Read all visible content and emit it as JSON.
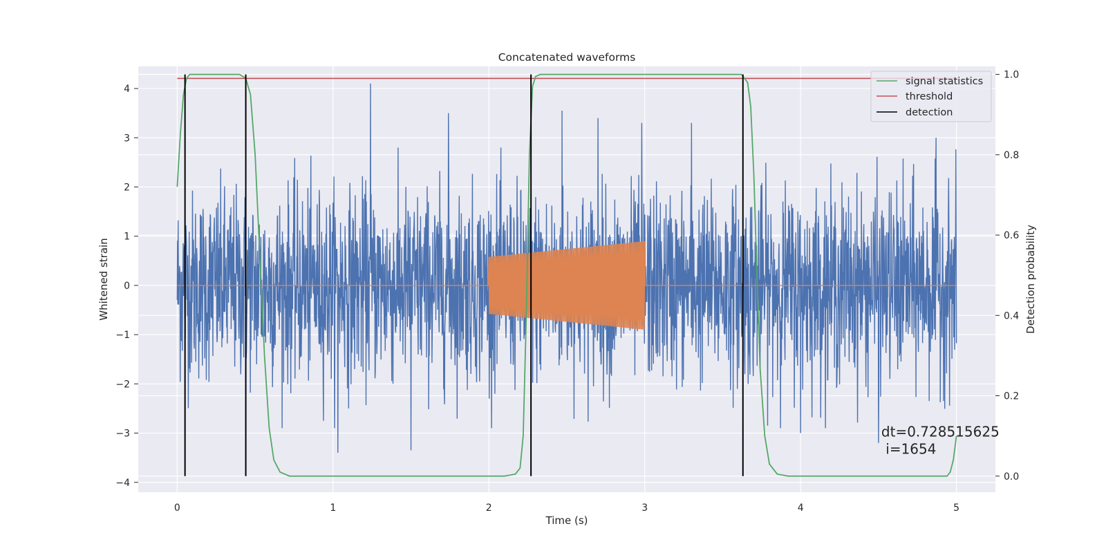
{
  "chart_data": {
    "type": "line",
    "title": "Concatenated waveforms",
    "xlabel": "Time (s)",
    "ylabel_left": "Whitened strain",
    "ylabel_right": "Detection probability",
    "xlim": [
      -0.25,
      5.25
    ],
    "ylim_left": [
      -4.2,
      4.45
    ],
    "ylim_right": [
      -0.04,
      1.02
    ],
    "xticks": [
      0,
      1,
      2,
      3,
      4,
      5
    ],
    "xtick_labels": [
      "0",
      "1",
      "2",
      "3",
      "4",
      "5"
    ],
    "yticks_left": [
      -4,
      -3,
      -2,
      -1,
      0,
      1,
      2,
      3,
      4
    ],
    "ytick_labels_left": [
      "−4",
      "−3",
      "−2",
      "−1",
      "0",
      "1",
      "2",
      "3",
      "4"
    ],
    "yticks_right": [
      0.0,
      0.2,
      0.4,
      0.6,
      0.8,
      1.0
    ],
    "ytick_labels_right": [
      "0.0",
      "0.2",
      "0.4",
      "0.6",
      "0.8",
      "1.0"
    ],
    "grid": true,
    "legend_position": "top-right",
    "series": [
      {
        "name": "",
        "axis": "left",
        "kind": "noise",
        "color": "#4c72b0",
        "x_range": [
          0,
          5
        ],
        "typical_range": [
          -1.6,
          1.6
        ],
        "peaks": [
          [
            1.24,
            4.1
          ],
          [
            1.74,
            3.5
          ],
          [
            2.47,
            3.55
          ],
          [
            2.7,
            3.4
          ],
          [
            2.98,
            3.3
          ],
          [
            3.3,
            3.3
          ],
          [
            4.5,
            3.1
          ],
          [
            4.87,
            3.0
          ],
          [
            1.5,
            -3.35
          ],
          [
            1.03,
            -3.4
          ],
          [
            4.5,
            -3.2
          ],
          [
            4.0,
            -3.0
          ]
        ]
      },
      {
        "name": "",
        "axis": "left",
        "kind": "chirp",
        "color": "#dd8452",
        "x_range": [
          0,
          5
        ],
        "active_range": [
          2.0,
          3.0
        ],
        "amplitude_start": 0.58,
        "amplitude_end": 0.9
      },
      {
        "name": "signal statistics",
        "axis": "right",
        "color": "#55a868",
        "x": [
          0.0,
          0.02,
          0.04,
          0.06,
          0.08,
          0.12,
          0.4,
          0.44,
          0.47,
          0.5,
          0.53,
          0.56,
          0.59,
          0.62,
          0.66,
          0.72,
          2.1,
          2.17,
          2.2,
          2.22,
          2.24,
          2.26,
          2.28,
          2.3,
          2.33,
          2.38,
          3.62,
          3.66,
          3.68,
          3.7,
          3.72,
          3.74,
          3.77,
          3.8,
          3.85,
          3.92,
          4.94,
          4.96,
          4.98,
          5.0
        ],
        "values": [
          0.72,
          0.85,
          0.95,
          0.99,
          1.0,
          1.0,
          1.0,
          0.99,
          0.95,
          0.8,
          0.55,
          0.3,
          0.12,
          0.04,
          0.01,
          0.0,
          0.0,
          0.005,
          0.02,
          0.1,
          0.4,
          0.8,
          0.97,
          0.995,
          1.0,
          1.0,
          1.0,
          0.98,
          0.92,
          0.75,
          0.5,
          0.27,
          0.1,
          0.03,
          0.005,
          0.0,
          0.0,
          0.01,
          0.04,
          0.1
        ]
      },
      {
        "name": "threshold",
        "axis": "right",
        "color": "#c44e52",
        "x": [
          0,
          5
        ],
        "values": [
          0.99,
          0.99
        ]
      },
      {
        "name": "detection",
        "axis": "right",
        "kind": "vertical-lines",
        "color": "#000000",
        "x": [
          0.05,
          0.44,
          2.27,
          3.63
        ],
        "span": [
          0.0,
          1.0
        ]
      }
    ],
    "annotation": {
      "lines": [
        "dt=0.728515625",
        " i=1654"
      ],
      "x": 4.5,
      "y": -3.0
    },
    "colors": {
      "plot_background": "#eaeaf2",
      "grid": "#ffffff",
      "noise": "#4c72b0",
      "chirp": "#dd8452",
      "signal_statistics": "#55a868",
      "threshold": "#c44e52",
      "detection": "#000000"
    }
  }
}
